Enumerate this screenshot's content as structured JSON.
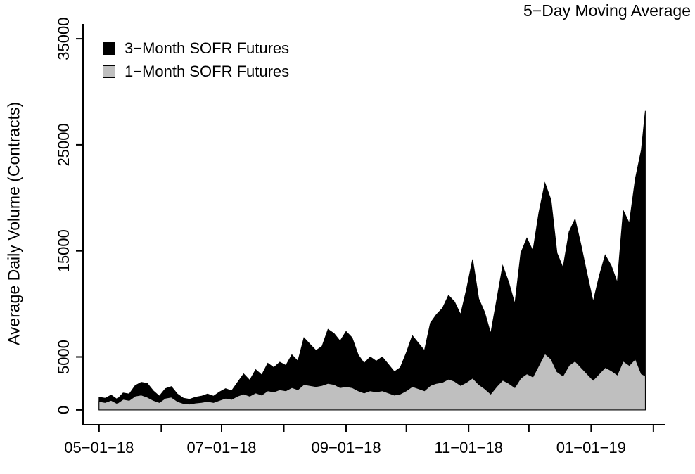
{
  "title": "5−Day Moving Average",
  "y_axis_label": "Average Daily Volume (Contracts)",
  "legend": {
    "items": [
      {
        "label": "3−Month SOFR Futures",
        "color": "#000000"
      },
      {
        "label": "1−Month SOFR Futures",
        "color": "#bfbfbf"
      }
    ]
  },
  "chart_data": {
    "type": "area",
    "stacked": true,
    "title": "5−Day Moving Average",
    "xlabel": "",
    "ylabel": "Average Daily Volume (Contracts)",
    "ylim": [
      0,
      35000
    ],
    "grid": false,
    "legend_position": "top-left",
    "x_unit": "trading days from 05-01-18",
    "x_domain": [
      -8,
      282
    ],
    "y_domain": [
      -1400,
      36400
    ],
    "x_ticks": [
      {
        "pos": 0,
        "label": "05−01−18"
      },
      {
        "pos": 31,
        "label": ""
      },
      {
        "pos": 61,
        "label": "07−01−18"
      },
      {
        "pos": 92,
        "label": ""
      },
      {
        "pos": 123,
        "label": "09−01−18"
      },
      {
        "pos": 153,
        "label": ""
      },
      {
        "pos": 184,
        "label": "11−01−18"
      },
      {
        "pos": 214,
        "label": ""
      },
      {
        "pos": 245,
        "label": "01−01−19"
      },
      {
        "pos": 276,
        "label": ""
      }
    ],
    "y_ticks": [
      {
        "pos": 0,
        "label": "0"
      },
      {
        "pos": 5000,
        "label": "5000"
      },
      {
        "pos": 15000,
        "label": "15000"
      },
      {
        "pos": 25000,
        "label": "25000"
      },
      {
        "pos": 35000,
        "label": "35000"
      }
    ],
    "x": [
      0,
      3,
      6,
      9,
      12,
      15,
      18,
      21,
      24,
      27,
      30,
      33,
      36,
      39,
      42,
      45,
      48,
      51,
      54,
      57,
      60,
      63,
      66,
      69,
      72,
      75,
      78,
      81,
      84,
      87,
      90,
      93,
      96,
      99,
      102,
      105,
      108,
      111,
      114,
      117,
      120,
      123,
      126,
      129,
      132,
      135,
      138,
      141,
      144,
      147,
      150,
      153,
      156,
      159,
      162,
      165,
      168,
      171,
      174,
      177,
      180,
      183,
      186,
      189,
      192,
      195,
      198,
      201,
      204,
      207,
      210,
      213,
      216,
      219,
      222,
      225,
      228,
      231,
      234,
      237,
      240,
      243,
      246,
      249,
      252,
      255,
      258,
      261,
      264,
      267,
      270,
      272
    ],
    "series": [
      {
        "name": "1-Month SOFR Futures",
        "color": "#bfbfbf",
        "values": [
          800,
          700,
          900,
          600,
          1000,
          900,
          1300,
          1400,
          1200,
          900,
          700,
          1100,
          1200,
          800,
          600,
          550,
          650,
          700,
          800,
          700,
          900,
          1100,
          1000,
          1300,
          1500,
          1300,
          1600,
          1400,
          1800,
          1700,
          1900,
          1800,
          2100,
          1900,
          2400,
          2300,
          2200,
          2300,
          2500,
          2400,
          2100,
          2200,
          2100,
          1800,
          1600,
          1800,
          1700,
          1800,
          1600,
          1400,
          1500,
          1800,
          2200,
          2000,
          1800,
          2300,
          2500,
          2600,
          2900,
          2700,
          2300,
          2600,
          3000,
          2400,
          2000,
          1500,
          2200,
          2800,
          2500,
          2100,
          3000,
          3400,
          3100,
          4200,
          5300,
          4800,
          3600,
          3200,
          4200,
          4600,
          4000,
          3400,
          2800,
          3400,
          4000,
          3700,
          3300,
          4600,
          4200,
          4800,
          3400,
          3200
        ]
      },
      {
        "name": "3-Month SOFR Futures",
        "color": "#000000",
        "values": [
          400,
          400,
          500,
          400,
          600,
          600,
          1000,
          1200,
          1300,
          900,
          600,
          900,
          1000,
          700,
          500,
          450,
          550,
          600,
          700,
          600,
          800,
          900,
          800,
          1300,
          1900,
          1500,
          2200,
          1900,
          2600,
          2300,
          2600,
          2400,
          3100,
          2700,
          4400,
          3900,
          3400,
          3700,
          5100,
          4800,
          4400,
          5200,
          4700,
          3400,
          2800,
          3200,
          2900,
          3200,
          2700,
          2200,
          2500,
          3600,
          4800,
          4300,
          3800,
          5900,
          6500,
          7000,
          7900,
          7500,
          6700,
          8800,
          11200,
          8100,
          7200,
          5700,
          8200,
          10800,
          9500,
          7900,
          11800,
          12800,
          11900,
          14400,
          16100,
          15000,
          11200,
          10200,
          12600,
          13400,
          11500,
          9400,
          7400,
          9200,
          10600,
          9900,
          8700,
          14200,
          13400,
          17000,
          21100,
          25000
        ]
      }
    ]
  }
}
